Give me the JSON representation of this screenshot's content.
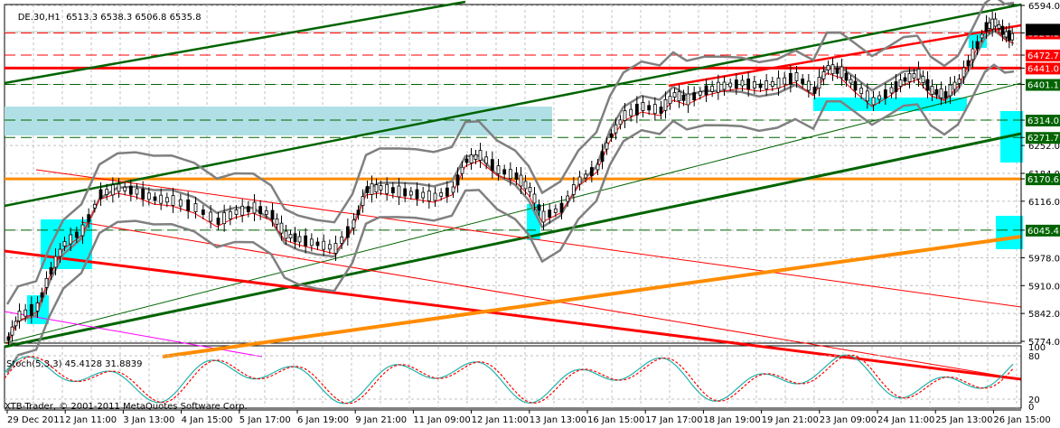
{
  "header": {
    "symbol": "DE.30,H1",
    "ohlc": "6513.3 6538.3 6506.8 6535.8"
  },
  "stochastic": {
    "label": "Stoch(5,3,3) 45.4128 31.8839",
    "levels": [
      "100",
      "80",
      "20",
      "0"
    ]
  },
  "copyright": "XTB-Trader, © 2001-2011 MetaQuotes Software Corp.",
  "colors": {
    "background": "#ffffff",
    "grid": "#c0c0c0",
    "axis": "#000000",
    "bullish_candle": "#ffffff",
    "bearish_candle": "#000000",
    "bollinger": "#808080",
    "ma": "#ff0000",
    "support_green": "#006400",
    "resistance_red": "#ff0000",
    "orange_level": "#ff8c00",
    "cyan_zone": "#00ffff",
    "lightblue_zone": "#b0e0e6",
    "magenta_line": "#ff00ff",
    "stoch_main": "#20b2aa",
    "stoch_signal": "#ff0000"
  },
  "price_axis": {
    "ticks": [
      "6594.0",
      "6526.8",
      "6472.7",
      "6441.0",
      "6401.1",
      "6314.0",
      "6271.7",
      "6252.0",
      "6184.0",
      "6170.6",
      "6116.0",
      "6045.4",
      "5978.0",
      "5910.0",
      "5842.0",
      "5774.0"
    ]
  },
  "price_labels": [
    {
      "value": "6526.8",
      "type": "red"
    },
    {
      "value": "6472.7",
      "type": "red"
    },
    {
      "value": "6441.0",
      "type": "red"
    },
    {
      "value": "6401.1",
      "type": "green"
    },
    {
      "value": "6314.0",
      "type": "green"
    },
    {
      "value": "6271.7",
      "type": "green"
    },
    {
      "value": "6170.6",
      "type": "green"
    },
    {
      "value": "6045.4",
      "type": "green"
    }
  ],
  "time_axis": {
    "labels": [
      "29 Dec 2011",
      "2 Jan 11:00",
      "3 Jan 13:00",
      "4 Jan 15:00",
      "5 Jan 17:00",
      "6 Jan 19:00",
      "9 Jan 21:00",
      "11 Jan 09:00",
      "12 Jan 11:00",
      "13 Jan 13:00",
      "16 Jan 15:00",
      "17 Jan 17:00",
      "18 Jan 19:00",
      "19 Jan 21:00",
      "23 Jan 09:00",
      "24 Jan 11:00",
      "25 Jan 13:00",
      "26 Jan 15:00"
    ]
  },
  "chart_data": {
    "type": "candlestick",
    "title": "DE.30,H1",
    "symbol": "DE.30",
    "timeframe": "H1",
    "last_bar": {
      "open": 6513.3,
      "high": 6538.3,
      "low": 6506.8,
      "close": 6535.8
    },
    "ylim": [
      5740,
      6620
    ],
    "y_ticks": [
      5774.0,
      5842.0,
      5910.0,
      5978.0,
      6045.4,
      6116.0,
      6184.0,
      6252.0,
      6314.0,
      6401.1,
      6441.0,
      6526.8,
      6594.0
    ],
    "x_tick_labels": [
      "29 Dec 2011",
      "2 Jan 11:00",
      "3 Jan 13:00",
      "4 Jan 15:00",
      "5 Jan 17:00",
      "6 Jan 19:00",
      "9 Jan 21:00",
      "11 Jan 09:00",
      "12 Jan 11:00",
      "13 Jan 13:00",
      "16 Jan 15:00",
      "17 Jan 17:00",
      "18 Jan 19:00",
      "19 Jan 21:00",
      "23 Jan 09:00",
      "24 Jan 11:00",
      "25 Jan 13:00",
      "26 Jan 15:00"
    ],
    "horizontal_levels": [
      {
        "price": 6526.8,
        "style": "dashed",
        "color": "red"
      },
      {
        "price": 6472.7,
        "style": "dashed",
        "color": "red"
      },
      {
        "price": 6441.0,
        "style": "solid-thick",
        "color": "red"
      },
      {
        "price": 6401.1,
        "style": "dashed",
        "color": "green"
      },
      {
        "price": 6314.0,
        "style": "dashed",
        "color": "green"
      },
      {
        "price": 6271.7,
        "style": "dashed",
        "color": "green"
      },
      {
        "price": 6170.6,
        "style": "solid-thick",
        "color": "orange"
      },
      {
        "price": 6045.4,
        "style": "dashed",
        "color": "green"
      }
    ],
    "indicators": [
      "Bollinger Bands",
      "Moving Average",
      "Stochastic(5,3,3)"
    ],
    "stochastic": {
      "main": 45.4128,
      "signal": 31.8839,
      "levels": [
        20,
        80
      ],
      "range": [
        0,
        100
      ]
    },
    "approx_close_path": [
      {
        "x": "29 Dec 2011",
        "close": 5800
      },
      {
        "x": "2 Jan 11:00",
        "close": 6060
      },
      {
        "x": "3 Jan 13:00",
        "close": 6160
      },
      {
        "x": "4 Jan 15:00",
        "close": 6120
      },
      {
        "x": "5 Jan 17:00",
        "close": 6130
      },
      {
        "x": "6 Jan 19:00",
        "close": 6030
      },
      {
        "x": "9 Jan 21:00",
        "close": 6165
      },
      {
        "x": "11 Jan 09:00",
        "close": 6170
      },
      {
        "x": "12 Jan 11:00",
        "close": 6220
      },
      {
        "x": "13 Jan 13:00",
        "close": 6110
      },
      {
        "x": "16 Jan 15:00",
        "close": 6235
      },
      {
        "x": "17 Jan 17:00",
        "close": 6365
      },
      {
        "x": "18 Jan 19:00",
        "close": 6405
      },
      {
        "x": "19 Jan 21:00",
        "close": 6410
      },
      {
        "x": "23 Jan 09:00",
        "close": 6400
      },
      {
        "x": "24 Jan 11:00",
        "close": 6400
      },
      {
        "x": "25 Jan 13:00",
        "close": 6460
      },
      {
        "x": "26 Jan 15:00",
        "close": 6535.8
      }
    ]
  }
}
